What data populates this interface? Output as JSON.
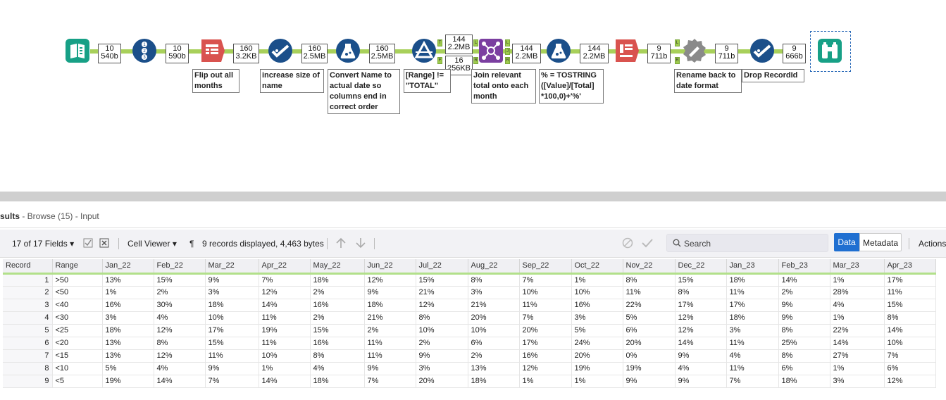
{
  "workflow": {
    "badges": [
      {
        "count": "10",
        "size": "540b"
      },
      {
        "count": "10",
        "size": "590b"
      },
      {
        "count": "160",
        "size": "3.2KB"
      },
      {
        "count": "160",
        "size": "2.5MB"
      },
      {
        "count": "160",
        "size": "2.5MB"
      },
      {
        "count": "144",
        "size": "2.2MB"
      },
      {
        "count": "16",
        "size": "256KB"
      },
      {
        "count": "144",
        "size": "2.2MB"
      },
      {
        "count": "144",
        "size": "2.2MB"
      },
      {
        "count": "9",
        "size": "711b"
      },
      {
        "count": "9",
        "size": "711b"
      },
      {
        "count": "9",
        "size": "666b"
      }
    ],
    "notes": [
      "Flip out all months",
      "increase size of name",
      "Convert Name to actual date so columns end in correct order",
      "[Range] != \"TOTAL\"",
      "Join relevant total onto each month",
      "% = TOSTRING ([Value]/[Total] *100,0)+'%'",
      "Rename back to date format",
      "Drop RecordId"
    ],
    "icons": [
      "input-data-icon",
      "record-id-icon",
      "crosstab-icon",
      "select-icon",
      "formula-icon",
      "formula-icon",
      "filter-icon",
      "join-icon",
      "formula-icon",
      "crosstab-icon",
      "dynamic-rename-icon",
      "select-icon",
      "browse-icon"
    ],
    "colors": {
      "teal": "#17a086",
      "navy": "#1b4f8a",
      "red": "#d9534f",
      "purple": "#7b3fa0",
      "gray": "#8a8a8a",
      "wire": "#a8d05a"
    }
  },
  "results": {
    "title_prefix": "sults",
    "title_rest": " - Browse (15) - Input",
    "fields_label": "17 of 17 Fields",
    "cell_viewer": "Cell Viewer",
    "pilcrow": "¶",
    "records_info": "9 records displayed, 4,463 bytes",
    "search_placeholder": "Search",
    "data_btn": "Data",
    "metadata_btn": "Metadata",
    "actions": "Actions"
  },
  "table": {
    "columns": [
      "Record",
      "Range",
      "Jan_22",
      "Feb_22",
      "Mar_22",
      "Apr_22",
      "May_22",
      "Jun_22",
      "Jul_22",
      "Aug_22",
      "Sep_22",
      "Oct_22",
      "Nov_22",
      "Dec_22",
      "Jan_23",
      "Feb_23",
      "Mar_23",
      "Apr_23"
    ],
    "rows": [
      [
        "1",
        ">50",
        "13%",
        "15%",
        "9%",
        "7%",
        "18%",
        "12%",
        "15%",
        "8%",
        "7%",
        "1%",
        "8%",
        "15%",
        "18%",
        "14%",
        "1%",
        "17%"
      ],
      [
        "2",
        "<50",
        "1%",
        "2%",
        "3%",
        "12%",
        "2%",
        "9%",
        "21%",
        "3%",
        "10%",
        "10%",
        "11%",
        "8%",
        "11%",
        "2%",
        "28%",
        "11%"
      ],
      [
        "3",
        "<40",
        "16%",
        "30%",
        "18%",
        "14%",
        "16%",
        "18%",
        "12%",
        "21%",
        "11%",
        "16%",
        "22%",
        "17%",
        "17%",
        "9%",
        "4%",
        "15%"
      ],
      [
        "4",
        "<30",
        "3%",
        "4%",
        "10%",
        "11%",
        "2%",
        "21%",
        "8%",
        "20%",
        "7%",
        "3%",
        "5%",
        "12%",
        "18%",
        "9%",
        "1%",
        "8%"
      ],
      [
        "5",
        "<25",
        "18%",
        "12%",
        "17%",
        "19%",
        "15%",
        "2%",
        "10%",
        "10%",
        "20%",
        "5%",
        "6%",
        "12%",
        "3%",
        "8%",
        "22%",
        "14%"
      ],
      [
        "6",
        "<20",
        "13%",
        "8%",
        "15%",
        "11%",
        "16%",
        "11%",
        "2%",
        "6%",
        "17%",
        "24%",
        "20%",
        "14%",
        "11%",
        "25%",
        "14%",
        "10%"
      ],
      [
        "7",
        "<15",
        "13%",
        "12%",
        "11%",
        "10%",
        "8%",
        "11%",
        "9%",
        "2%",
        "16%",
        "20%",
        "0%",
        "9%",
        "4%",
        "8%",
        "27%",
        "7%"
      ],
      [
        "8",
        "<10",
        "5%",
        "4%",
        "9%",
        "1%",
        "4%",
        "9%",
        "3%",
        "13%",
        "12%",
        "19%",
        "19%",
        "4%",
        "11%",
        "6%",
        "1%",
        "6%"
      ],
      [
        "9",
        "<5",
        "19%",
        "14%",
        "7%",
        "14%",
        "18%",
        "7%",
        "20%",
        "18%",
        "1%",
        "1%",
        "9%",
        "9%",
        "7%",
        "18%",
        "3%",
        "12%"
      ]
    ]
  }
}
